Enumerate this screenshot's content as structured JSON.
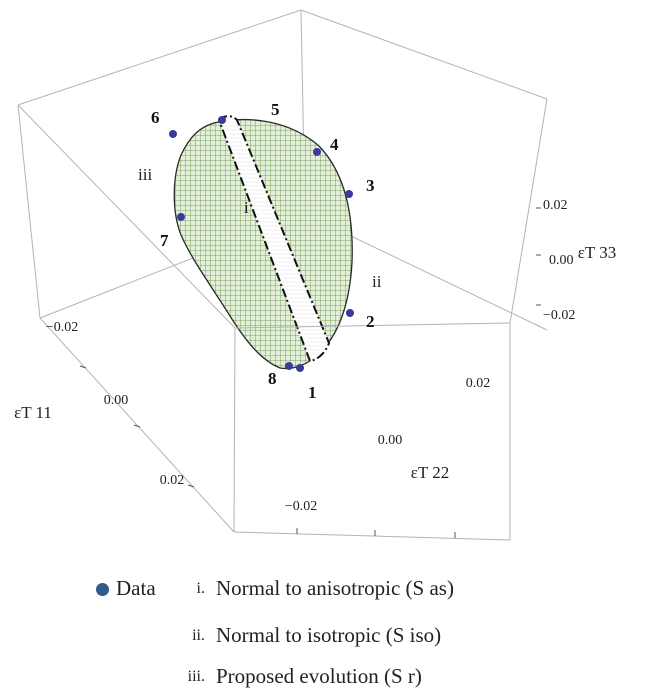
{
  "chart_data": {
    "type": "scatter",
    "title": "",
    "axes": {
      "x": {
        "label": "εT 11",
        "ticks": [
          "−0.02",
          "0.00",
          "0.02"
        ]
      },
      "y": {
        "label": "εT 22",
        "ticks": [
          "−0.02",
          "0.00",
          "0.02"
        ]
      },
      "z": {
        "label": "εT 33",
        "ticks": [
          "−0.02",
          "0.00",
          "0.02"
        ]
      }
    },
    "grid": false,
    "point_labels": [
      "1",
      "2",
      "3",
      "4",
      "5",
      "6",
      "7",
      "8"
    ],
    "region_labels": [
      "i",
      "ii",
      "iii"
    ],
    "series": [
      {
        "name": "Data",
        "color": "#3a3a9a"
      }
    ],
    "surfaces": [
      {
        "id": "i",
        "color": "#ffffff",
        "edge": "dash-dot"
      },
      {
        "id": "ii",
        "color": "#ffffff",
        "edge": "none"
      },
      {
        "id": "iii",
        "color": "#5a8a3a",
        "edge": "solid"
      }
    ]
  },
  "legend": {
    "data_label": "Data",
    "items": [
      {
        "num": "i.",
        "text": "Normal to anisotropic (S as)"
      },
      {
        "num": "ii.",
        "text": "Normal to isotropic (S iso)"
      },
      {
        "num": "iii.",
        "text": "Proposed evolution (S r)"
      }
    ],
    "dot_color": "#2e5c8a"
  }
}
